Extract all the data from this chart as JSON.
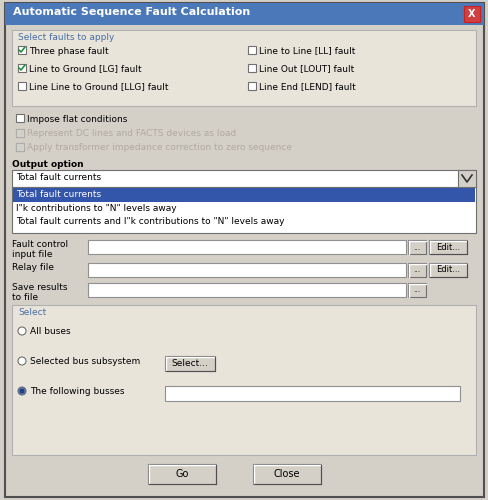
{
  "title": "Automatic Sequence Fault Calculation",
  "title_bar_color": "#4a78b8",
  "title_text_color": "#ffffff",
  "bg_color": "#d4d0c8",
  "dialog_bg": "#d4d0c8",
  "section_bg": "#e8e4da",
  "white": "#ffffff",
  "blue_selected": "#3355aa",
  "blue_selected_text": "#ffffff",
  "border_color": "#808080",
  "text_color": "#000000",
  "gray_text": "#b0aaa0",
  "blue_label": "#4a6fa5",
  "checkboxes_left": [
    {
      "label": "Three phase fault",
      "checked": true
    },
    {
      "label": "Line to Ground [LG] fault",
      "checked": true
    },
    {
      "label": "Line Line to Ground [LLG] fault",
      "checked": false
    }
  ],
  "checkboxes_right": [
    {
      "label": "Line to Line [LL] fault",
      "checked": false
    },
    {
      "label": "Line Out [LOUT] fault",
      "checked": false
    },
    {
      "label": "Line End [LEND] fault",
      "checked": false
    }
  ],
  "impose_flat": "Impose flat conditions",
  "represent_dc": "Represent DC lines and FACTS devices as load",
  "apply_transformer": "Apply transformer impedance correction to zero sequence",
  "output_option_label": "Output option",
  "dropdown_text": "Total fault currents",
  "dropdown_items": [
    "Total fault currents",
    "I\"k contributions to \"N\" levels away",
    "Total fault currents and I\"k contributions to \"N\" levels away"
  ],
  "fault_control_label": "Fault control\ninput file",
  "relay_file_label": "Relay file",
  "save_results_label": "Save results\nto file",
  "select_label": "Select",
  "radio_options": [
    "All buses",
    "Selected bus subsystem",
    "The following busses"
  ],
  "radio_selected": 2,
  "select_button": "Select...",
  "go_button": "Go",
  "close_button": "Close"
}
